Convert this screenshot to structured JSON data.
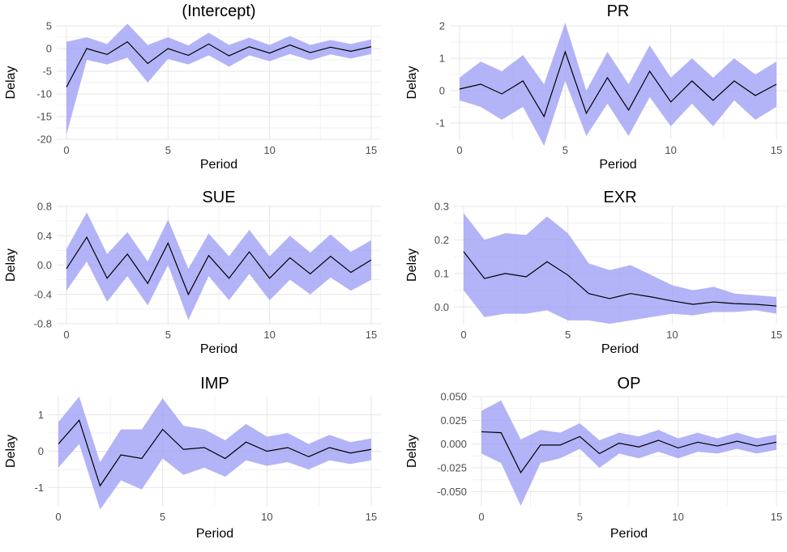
{
  "figure": {
    "band_color": "#9a9af5",
    "line_color": "#000000",
    "x_label": "Period",
    "y_label": "Delay"
  },
  "chart_data": [
    {
      "type": "line",
      "title": "(Intercept)",
      "xlabel": "Period",
      "ylabel": "Delay",
      "xlim": [
        0,
        15
      ],
      "ylim": [
        -20,
        5
      ],
      "xticks": [
        0,
        5,
        10,
        15
      ],
      "xtick_labels": [
        "0",
        "5",
        "10",
        "15"
      ],
      "yticks": [
        -20,
        -15,
        -10,
        -5,
        0,
        5
      ],
      "ytick_labels": [
        "-20",
        "-15",
        "-10",
        "-5",
        "0",
        "5"
      ],
      "grid": true,
      "x": [
        0,
        1,
        2,
        3,
        4,
        5,
        6,
        7,
        8,
        9,
        10,
        11,
        12,
        13,
        14,
        15
      ],
      "series": [
        {
          "values": [
            -8.5,
            0.0,
            -1.3,
            1.5,
            -3.3,
            0.0,
            -1.5,
            1.0,
            -1.6,
            0.4,
            -1.0,
            0.8,
            -0.9,
            0.3,
            -0.6,
            0.4
          ],
          "lower": [
            -19.0,
            -2.5,
            -3.5,
            -2.0,
            -7.5,
            -2.3,
            -3.5,
            -1.5,
            -4.0,
            -1.5,
            -2.8,
            -1.2,
            -2.6,
            -1.3,
            -2.2,
            -1.2
          ],
          "upper": [
            1.5,
            2.5,
            1.0,
            5.5,
            0.8,
            2.5,
            0.7,
            3.5,
            0.8,
            2.4,
            0.8,
            2.8,
            0.8,
            1.9,
            1.0,
            2.0
          ]
        }
      ]
    },
    {
      "type": "line",
      "title": "PR",
      "xlabel": "Period",
      "ylabel": "Delay",
      "xlim": [
        0,
        15
      ],
      "ylim": [
        -1.5,
        2
      ],
      "xticks": [
        0,
        5,
        10,
        15
      ],
      "xtick_labels": [
        "0",
        "5",
        "10",
        "15"
      ],
      "yticks": [
        -1,
        0,
        1,
        2
      ],
      "ytick_labels": [
        "-1",
        "0",
        "1",
        "2"
      ],
      "grid": true,
      "x": [
        0,
        1,
        2,
        3,
        4,
        5,
        6,
        7,
        8,
        9,
        10,
        11,
        12,
        13,
        14,
        15
      ],
      "series": [
        {
          "values": [
            0.05,
            0.2,
            -0.1,
            0.3,
            -0.8,
            1.2,
            -0.7,
            0.4,
            -0.6,
            0.6,
            -0.35,
            0.3,
            -0.3,
            0.3,
            -0.15,
            0.2
          ],
          "lower": [
            -0.3,
            -0.5,
            -0.9,
            -0.5,
            -1.7,
            0.3,
            -1.4,
            -0.4,
            -1.4,
            -0.2,
            -1.1,
            -0.4,
            -1.1,
            -0.3,
            -0.9,
            -0.5
          ],
          "upper": [
            0.4,
            0.9,
            0.6,
            1.1,
            0.2,
            2.1,
            0.0,
            1.2,
            0.2,
            1.4,
            0.4,
            1.0,
            0.4,
            1.0,
            0.5,
            0.9
          ]
        }
      ]
    },
    {
      "type": "line",
      "title": "SUE",
      "xlabel": "Period",
      "ylabel": "Delay",
      "xlim": [
        0,
        15
      ],
      "ylim": [
        -0.8,
        0.8
      ],
      "xticks": [
        0,
        5,
        10,
        15
      ],
      "xtick_labels": [
        "0",
        "5",
        "10",
        "15"
      ],
      "yticks": [
        -0.8,
        -0.4,
        0.0,
        0.4,
        0.8
      ],
      "ytick_labels": [
        "-0.8",
        "-0.4",
        "0.0",
        "0.4",
        "0.8"
      ],
      "grid": true,
      "x": [
        0,
        1,
        2,
        3,
        4,
        5,
        6,
        7,
        8,
        9,
        10,
        11,
        12,
        13,
        14,
        15
      ],
      "series": [
        {
          "values": [
            -0.05,
            0.38,
            -0.18,
            0.15,
            -0.25,
            0.3,
            -0.4,
            0.13,
            -0.18,
            0.18,
            -0.18,
            0.1,
            -0.12,
            0.12,
            -0.1,
            0.07
          ],
          "lower": [
            -0.35,
            0.05,
            -0.5,
            -0.15,
            -0.55,
            0.0,
            -0.75,
            -0.15,
            -0.48,
            -0.12,
            -0.48,
            -0.2,
            -0.4,
            -0.17,
            -0.35,
            -0.2
          ],
          "upper": [
            0.22,
            0.72,
            0.15,
            0.45,
            0.05,
            0.62,
            -0.05,
            0.43,
            0.12,
            0.48,
            0.12,
            0.4,
            0.17,
            0.42,
            0.18,
            0.34
          ]
        }
      ]
    },
    {
      "type": "line",
      "title": "EXR",
      "xlabel": "Period",
      "ylabel": "Delay",
      "xlim": [
        0,
        15
      ],
      "ylim": [
        -0.05,
        0.3
      ],
      "xticks": [
        0,
        5,
        10,
        15
      ],
      "xtick_labels": [
        "0",
        "5",
        "10",
        "15"
      ],
      "yticks": [
        0.0,
        0.1,
        0.2,
        0.3
      ],
      "ytick_labels": [
        "0.0",
        "0.1",
        "0.2",
        "0.3"
      ],
      "grid": true,
      "x": [
        0,
        1,
        2,
        3,
        4,
        5,
        6,
        7,
        8,
        9,
        10,
        11,
        12,
        13,
        14,
        15
      ],
      "series": [
        {
          "values": [
            0.165,
            0.085,
            0.1,
            0.09,
            0.135,
            0.095,
            0.04,
            0.025,
            0.04,
            0.03,
            0.018,
            0.008,
            0.015,
            0.01,
            0.008,
            0.003
          ],
          "lower": [
            0.05,
            -0.03,
            -0.02,
            -0.02,
            -0.01,
            -0.04,
            -0.04,
            -0.05,
            -0.04,
            -0.03,
            -0.02,
            -0.025,
            -0.015,
            -0.015,
            -0.01,
            -0.02
          ],
          "upper": [
            0.28,
            0.2,
            0.22,
            0.215,
            0.27,
            0.22,
            0.13,
            0.11,
            0.125,
            0.095,
            0.065,
            0.05,
            0.06,
            0.04,
            0.035,
            0.03
          ]
        }
      ]
    },
    {
      "type": "line",
      "title": "IMP",
      "xlabel": "Period",
      "ylabel": "Delay",
      "xlim": [
        0,
        15
      ],
      "ylim": [
        -1.5,
        1.5
      ],
      "xticks": [
        0,
        5,
        10,
        15
      ],
      "xtick_labels": [
        "0",
        "5",
        "10",
        "15"
      ],
      "yticks": [
        -1,
        0,
        1
      ],
      "ytick_labels": [
        "-1",
        "0",
        "1"
      ],
      "grid": true,
      "x": [
        0,
        1,
        2,
        3,
        4,
        5,
        6,
        7,
        8,
        9,
        10,
        11,
        12,
        13,
        14,
        15
      ],
      "series": [
        {
          "values": [
            0.2,
            0.85,
            -0.95,
            -0.1,
            -0.2,
            0.6,
            0.05,
            0.1,
            -0.2,
            0.25,
            0.0,
            0.1,
            -0.15,
            0.1,
            -0.05,
            0.05
          ],
          "lower": [
            -0.45,
            0.2,
            -1.6,
            -0.8,
            -1.05,
            -0.2,
            -0.65,
            -0.45,
            -0.7,
            -0.25,
            -0.4,
            -0.3,
            -0.5,
            -0.25,
            -0.35,
            -0.25
          ],
          "upper": [
            0.8,
            1.5,
            -0.3,
            0.6,
            0.6,
            1.45,
            0.7,
            0.6,
            0.3,
            0.75,
            0.4,
            0.5,
            0.2,
            0.45,
            0.25,
            0.35
          ]
        }
      ]
    },
    {
      "type": "line",
      "title": "OP",
      "xlabel": "Period",
      "ylabel": "Delay",
      "xlim": [
        0,
        15
      ],
      "ylim": [
        -0.065,
        0.05
      ],
      "xticks": [
        0,
        5,
        10,
        15
      ],
      "xtick_labels": [
        "0",
        "5",
        "10",
        "15"
      ],
      "yticks": [
        -0.05,
        -0.025,
        0.0,
        0.025,
        0.05
      ],
      "ytick_labels": [
        "-0.050",
        "-0.025",
        "0.000",
        "0.025",
        "0.050"
      ],
      "grid": true,
      "x": [
        0,
        1,
        2,
        3,
        4,
        5,
        6,
        7,
        8,
        9,
        10,
        11,
        12,
        13,
        14,
        15
      ],
      "series": [
        {
          "values": [
            0.013,
            0.012,
            -0.03,
            -0.001,
            -0.001,
            0.008,
            -0.01,
            0.001,
            -0.003,
            0.004,
            -0.004,
            0.002,
            -0.002,
            0.003,
            -0.002,
            0.002
          ],
          "lower": [
            -0.01,
            -0.02,
            -0.065,
            -0.02,
            -0.015,
            -0.005,
            -0.025,
            -0.01,
            -0.015,
            -0.008,
            -0.015,
            -0.008,
            -0.01,
            -0.005,
            -0.01,
            -0.006
          ],
          "upper": [
            0.035,
            0.046,
            0.005,
            0.015,
            0.012,
            0.022,
            0.004,
            0.012,
            0.008,
            0.015,
            0.006,
            0.012,
            0.006,
            0.012,
            0.006,
            0.01
          ]
        }
      ]
    }
  ]
}
